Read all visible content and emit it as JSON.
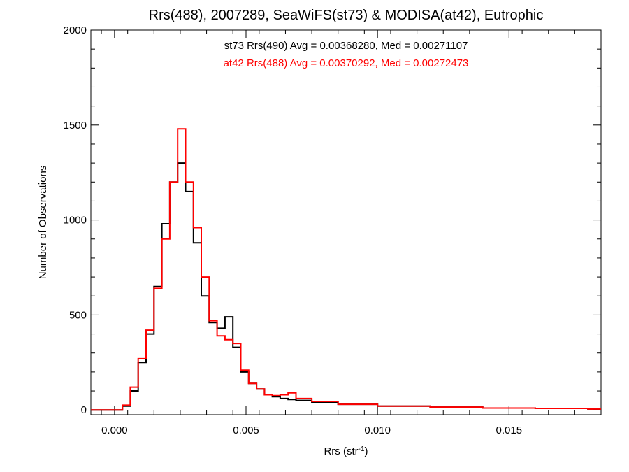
{
  "chart_data": {
    "type": "line",
    "title": "Rrs(488), 2007289, SeaWiFS(st73) & MODISA(at42), Eutrophic",
    "xlabel_main": "Rrs (str",
    "xlabel_sup": "-1",
    "xlabel_close": ")",
    "ylabel": "Number of Observations",
    "xlim": [
      -0.0009,
      0.0185
    ],
    "ylim": [
      -25,
      2000
    ],
    "xticks": [
      {
        "value": 0.0,
        "label": "0.000"
      },
      {
        "value": 0.005,
        "label": "0.005"
      },
      {
        "value": 0.01,
        "label": "0.010"
      },
      {
        "value": 0.015,
        "label": "0.015"
      }
    ],
    "yticks": [
      {
        "value": 0,
        "label": "0"
      },
      {
        "value": 500,
        "label": "500"
      },
      {
        "value": 1000,
        "label": "1000"
      },
      {
        "value": 1500,
        "label": "1500"
      },
      {
        "value": 2000,
        "label": "2000"
      }
    ],
    "grid": false,
    "series": [
      {
        "name": "st73",
        "color": "#000000",
        "annotation": "st73 Rrs(490) Avg = 0.00368280, Med = 0.00271107",
        "x": [
          0.0,
          0.0003,
          0.0006,
          0.0009,
          0.0012,
          0.0015,
          0.0018,
          0.0021,
          0.0024,
          0.0027,
          0.003,
          0.0033,
          0.0036,
          0.0039,
          0.0042,
          0.0045,
          0.0048,
          0.0051,
          0.0054,
          0.0057,
          0.006,
          0.0063,
          0.0066,
          0.0069,
          0.0075,
          0.0085,
          0.01,
          0.012,
          0.014,
          0.016,
          0.018
        ],
        "y": [
          0,
          20,
          100,
          250,
          400,
          650,
          980,
          1200,
          1300,
          1150,
          880,
          600,
          460,
          430,
          490,
          330,
          200,
          140,
          110,
          80,
          70,
          60,
          55,
          50,
          40,
          30,
          20,
          15,
          10,
          8,
          5
        ]
      },
      {
        "name": "at42",
        "color": "#ff0000",
        "annotation": "at42 Rrs(488) Avg = 0.00370292, Med = 0.00272473",
        "x": [
          0.0,
          0.0003,
          0.0006,
          0.0009,
          0.0012,
          0.0015,
          0.0018,
          0.0021,
          0.0024,
          0.0027,
          0.003,
          0.0033,
          0.0036,
          0.0039,
          0.0042,
          0.0045,
          0.0048,
          0.0051,
          0.0054,
          0.0057,
          0.006,
          0.0063,
          0.0066,
          0.0069,
          0.0075,
          0.0085,
          0.01,
          0.012,
          0.014,
          0.016,
          0.018
        ],
        "y": [
          0,
          25,
          120,
          270,
          420,
          640,
          900,
          1200,
          1480,
          1200,
          960,
          700,
          470,
          390,
          370,
          350,
          210,
          140,
          110,
          80,
          75,
          80,
          90,
          60,
          45,
          30,
          20,
          15,
          10,
          8,
          5
        ]
      }
    ]
  }
}
